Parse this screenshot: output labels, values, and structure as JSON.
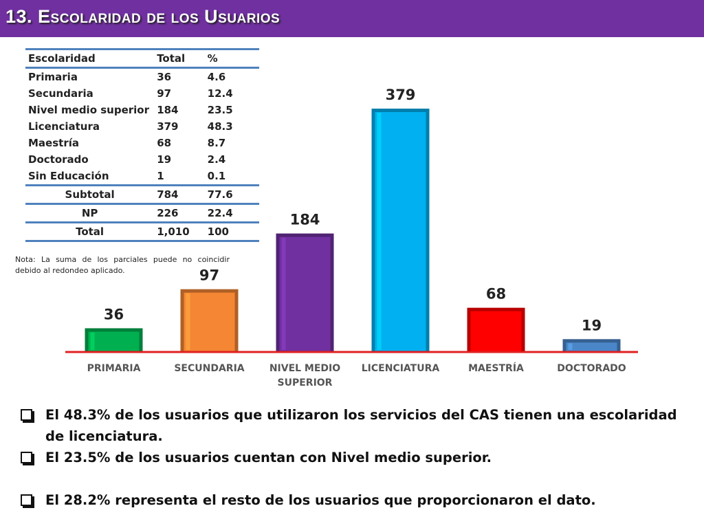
{
  "title": "13. Escolaridad de los Usuarios",
  "table": {
    "headers": [
      "Escolaridad",
      "Total",
      "%"
    ],
    "rows": [
      [
        "Primaria",
        "36",
        "4.6"
      ],
      [
        "Secundaria",
        "97",
        "12.4"
      ],
      [
        "Nivel medio superior",
        "184",
        "23.5"
      ],
      [
        "Licenciatura",
        "379",
        "48.3"
      ],
      [
        "Maestría",
        "68",
        "8.7"
      ],
      [
        "Doctorado",
        "19",
        "2.4"
      ],
      [
        "Sin Educación",
        "1",
        "0.1"
      ]
    ],
    "subtotal": [
      "Subtotal",
      "784",
      "77.6"
    ],
    "np": [
      "NP",
      "226",
      "22.4"
    ],
    "total": [
      "Total",
      "1,010",
      "100"
    ]
  },
  "note": "Nota: La suma de los parciales puede no coincidir debido al redondeo aplicado.",
  "chart_data": {
    "type": "bar",
    "categories": [
      "PRIMARIA",
      "SECUNDARIA",
      "NIVEL MEDIO SUPERIOR",
      "LICENCIATURA",
      "MAESTRÍA",
      "DOCTORADO"
    ],
    "values": [
      36,
      97,
      184,
      379,
      68,
      19
    ],
    "colors": [
      "#00b050",
      "#f58634",
      "#7030a0",
      "#00b0f0",
      "#ff0000",
      "#4a86c8"
    ],
    "title": "",
    "xlabel": "",
    "ylabel": "",
    "ylim": [
      0,
      379
    ],
    "grid": false,
    "legend": "none"
  },
  "colors": {
    "accent": "#7030a0",
    "axis": "#e02020",
    "table_rule": "#4f81bd"
  },
  "bullets": [
    "El 48.3% de los usuarios que utilizaron los servicios del CAS tienen una escolaridad de licenciatura.",
    "El 23.5% de los usuarios cuentan con Nivel medio superior.",
    "El  28.2% representa el resto de los usuarios que proporcionaron el dato."
  ]
}
